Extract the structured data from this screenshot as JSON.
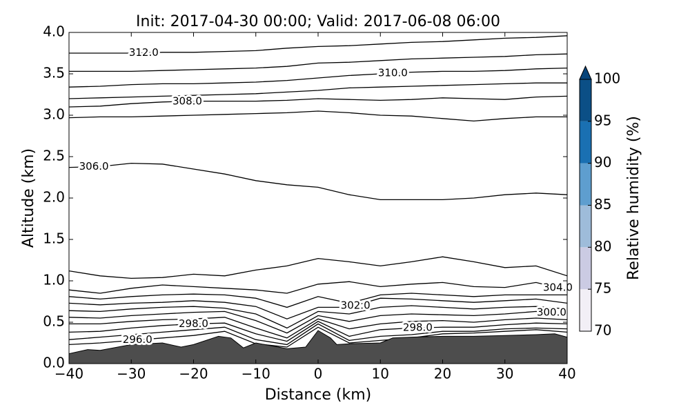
{
  "chart_data": {
    "type": "contour",
    "title": "Init: 2017-04-30 00:00; Valid: 2017-06-08 06:00",
    "xlabel": "Distance (km)",
    "ylabel": "Altitude (km)",
    "xlim": [
      -40,
      40
    ],
    "ylim": [
      0,
      4
    ],
    "xticks": [
      {
        "value": -40,
        "label": "−40"
      },
      {
        "value": -30,
        "label": "−30"
      },
      {
        "value": -20,
        "label": "−20"
      },
      {
        "value": -10,
        "label": "−10"
      },
      0,
      10,
      20,
      30,
      40
    ],
    "yticks": [
      {
        "value": 0,
        "label": "0.0"
      },
      0.5,
      {
        "value": 1,
        "label": "1.0"
      },
      1.5,
      {
        "value": 2,
        "label": "2.0"
      },
      2.5,
      {
        "value": 3,
        "label": "3.0"
      },
      3.5,
      {
        "value": 4,
        "label": "4.0"
      }
    ],
    "x": [
      -40,
      -35,
      -30,
      -25,
      -20,
      -15,
      -10,
      -5,
      0,
      5,
      10,
      15,
      20,
      25,
      30,
      35,
      40
    ],
    "contours": [
      {
        "level": 312,
        "label": "312.0",
        "values": [
          3.75,
          3.75,
          3.75,
          3.76,
          3.76,
          3.77,
          3.78,
          3.81,
          3.83,
          3.84,
          3.86,
          3.88,
          3.89,
          3.91,
          3.93,
          3.94,
          3.96
        ]
      },
      {
        "level": 311,
        "values": [
          3.53,
          3.53,
          3.53,
          3.54,
          3.55,
          3.56,
          3.57,
          3.59,
          3.63,
          3.64,
          3.66,
          3.68,
          3.69,
          3.7,
          3.71,
          3.73,
          3.74
        ]
      },
      {
        "level": 310,
        "label": "310.0",
        "values": [
          3.34,
          3.35,
          3.37,
          3.38,
          3.38,
          3.39,
          3.4,
          3.42,
          3.45,
          3.48,
          3.5,
          3.52,
          3.53,
          3.53,
          3.54,
          3.56,
          3.57
        ]
      },
      {
        "level": 309,
        "values": [
          3.2,
          3.21,
          3.22,
          3.23,
          3.24,
          3.25,
          3.26,
          3.28,
          3.3,
          3.33,
          3.34,
          3.35,
          3.36,
          3.37,
          3.38,
          3.39,
          3.39
        ]
      },
      {
        "level": 308,
        "label": "308.0",
        "values": [
          3.1,
          3.11,
          3.14,
          3.16,
          3.17,
          3.17,
          3.17,
          3.18,
          3.2,
          3.19,
          3.18,
          3.19,
          3.21,
          3.2,
          3.19,
          3.22,
          3.23
        ]
      },
      {
        "level": 307,
        "values": [
          2.97,
          2.98,
          2.98,
          2.99,
          3.0,
          3.01,
          3.02,
          3.03,
          3.05,
          3.03,
          3.0,
          2.99,
          2.96,
          2.93,
          2.96,
          2.98,
          2.98
        ]
      },
      {
        "level": 306,
        "label": "306.0",
        "values": [
          2.37,
          2.38,
          2.42,
          2.41,
          2.35,
          2.29,
          2.21,
          2.16,
          2.13,
          2.04,
          1.98,
          1.98,
          1.98,
          2.0,
          2.04,
          2.06,
          2.04
        ]
      },
      {
        "level": 305,
        "values": [
          1.12,
          1.06,
          1.03,
          1.04,
          1.08,
          1.06,
          1.13,
          1.18,
          1.27,
          1.23,
          1.18,
          1.23,
          1.29,
          1.23,
          1.16,
          1.18,
          1.06
        ]
      },
      {
        "level": 304,
        "label": "304.0",
        "values": [
          0.89,
          0.85,
          0.91,
          0.95,
          0.93,
          0.91,
          0.89,
          0.85,
          0.96,
          0.99,
          0.93,
          0.96,
          0.98,
          0.93,
          0.92,
          0.98,
          0.89
        ]
      },
      {
        "level": 303,
        "values": [
          0.81,
          0.78,
          0.81,
          0.83,
          0.84,
          0.83,
          0.79,
          0.68,
          0.81,
          0.73,
          0.83,
          0.85,
          0.83,
          0.81,
          0.83,
          0.83,
          0.83
        ]
      },
      {
        "level": 302,
        "label": "302.0",
        "values": [
          0.73,
          0.71,
          0.73,
          0.74,
          0.76,
          0.74,
          0.69,
          0.54,
          0.68,
          0.68,
          0.79,
          0.78,
          0.76,
          0.74,
          0.76,
          0.78,
          0.73
        ]
      },
      {
        "level": 301,
        "values": [
          0.64,
          0.63,
          0.66,
          0.68,
          0.69,
          0.67,
          0.6,
          0.43,
          0.63,
          0.6,
          0.68,
          0.7,
          0.68,
          0.66,
          0.68,
          0.69,
          0.66
        ]
      },
      {
        "level": 300,
        "label": "300.0",
        "values": [
          0.56,
          0.55,
          0.58,
          0.6,
          0.62,
          0.63,
          0.52,
          0.37,
          0.58,
          0.51,
          0.58,
          0.6,
          0.59,
          0.58,
          0.6,
          0.63,
          0.6
        ]
      },
      {
        "level": 299,
        "values": [
          0.48,
          0.48,
          0.51,
          0.53,
          0.54,
          0.56,
          0.43,
          0.31,
          0.54,
          0.42,
          0.48,
          0.51,
          0.52,
          0.5,
          0.53,
          0.55,
          0.53
        ]
      },
      {
        "level": 298,
        "label": "298.0",
        "values": [
          0.38,
          0.39,
          0.43,
          0.46,
          0.48,
          0.49,
          0.36,
          0.27,
          0.51,
          0.33,
          0.41,
          0.43,
          0.44,
          0.44,
          0.47,
          0.49,
          0.48
        ]
      },
      {
        "level": 297,
        "values": [
          0.29,
          0.32,
          0.35,
          0.38,
          0.41,
          0.44,
          0.29,
          0.23,
          0.48,
          0.28,
          0.33,
          0.35,
          0.39,
          0.39,
          0.42,
          0.43,
          0.42
        ]
      },
      {
        "level": 296,
        "label": "296.0",
        "values": [
          0.23,
          0.25,
          0.28,
          0.31,
          0.34,
          0.39,
          0.24,
          0.2,
          0.44,
          0.25,
          0.28,
          0.31,
          0.36,
          0.37,
          0.39,
          0.41,
          0.38
        ]
      }
    ],
    "terrain": {
      "color": "#4d4d4d",
      "x": [
        -40,
        -37,
        -35,
        -30,
        -25,
        -22,
        -20,
        -16,
        -14,
        -12,
        -10,
        -5,
        -2,
        0,
        2,
        3,
        5,
        10,
        12,
        15,
        20,
        25,
        30,
        35,
        38,
        40
      ],
      "values": [
        0.12,
        0.17,
        0.16,
        0.23,
        0.25,
        0.2,
        0.23,
        0.33,
        0.31,
        0.19,
        0.25,
        0.18,
        0.2,
        0.4,
        0.31,
        0.23,
        0.24,
        0.25,
        0.31,
        0.32,
        0.33,
        0.33,
        0.34,
        0.35,
        0.36,
        0.32
      ]
    },
    "colorbar": {
      "label": "Relative humidity (%)",
      "ticks": [
        70,
        75,
        80,
        85,
        90,
        95,
        100
      ],
      "colors": [
        "#f2eff6",
        "#cbcbe3",
        "#9ebcda",
        "#5e9ecf",
        "#1a70b2",
        "#0b4f86"
      ],
      "extend_color": "#08457a"
    }
  }
}
